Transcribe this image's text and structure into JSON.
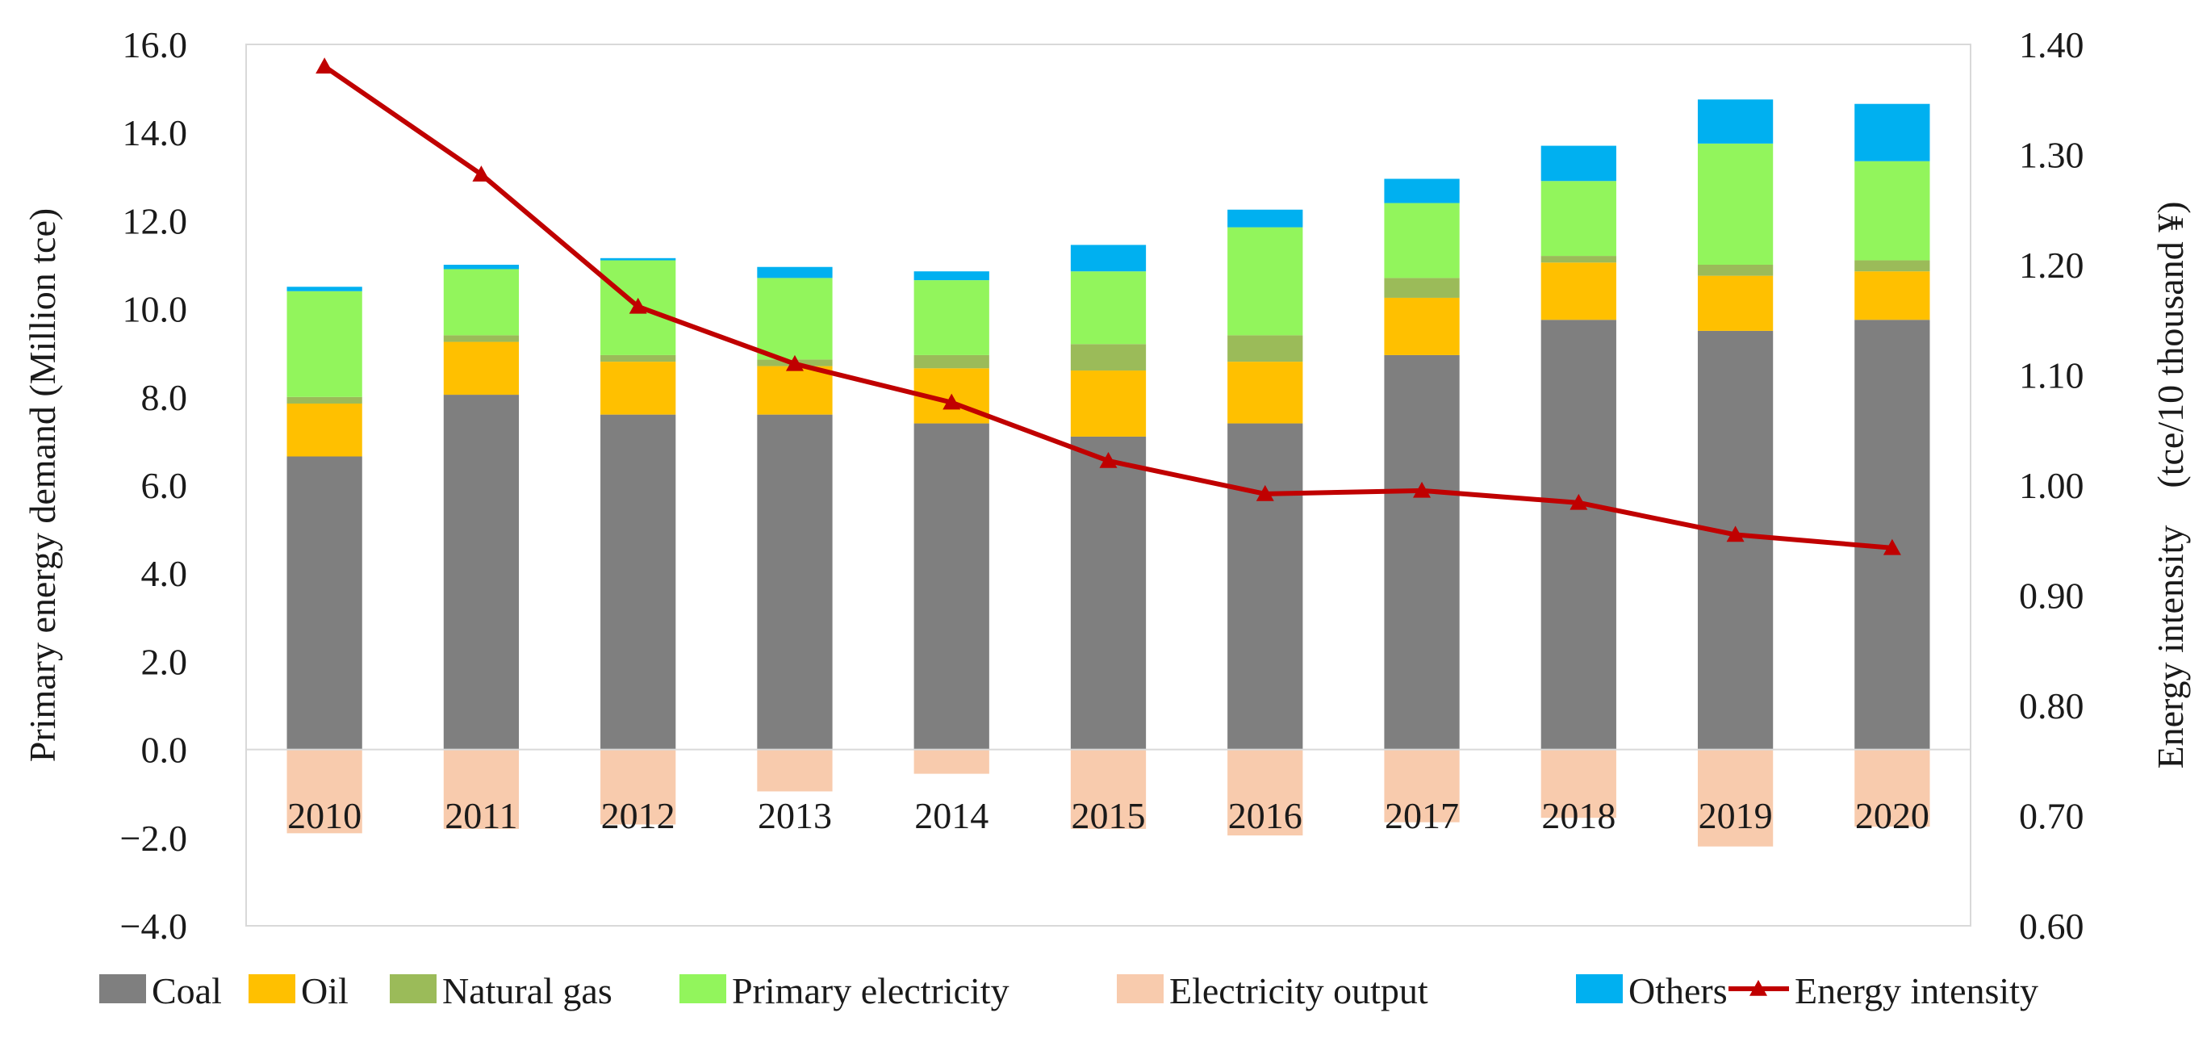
{
  "chart_data": {
    "type": "bar",
    "stacked": true,
    "categories": [
      "2010",
      "2011",
      "2012",
      "2013",
      "2014",
      "2015",
      "2016",
      "2017",
      "2018",
      "2019",
      "2020"
    ],
    "series": [
      {
        "name": "Coal",
        "color": "#7f7f7f",
        "values": [
          6.65,
          8.05,
          7.6,
          7.6,
          7.4,
          7.1,
          7.4,
          8.95,
          9.75,
          9.5,
          9.75
        ]
      },
      {
        "name": "Oil",
        "color": "#ffc000",
        "values": [
          1.2,
          1.2,
          1.2,
          1.1,
          1.25,
          1.5,
          1.4,
          1.3,
          1.3,
          1.25,
          1.1
        ]
      },
      {
        "name": "Natural gas",
        "color": "#9bbb59",
        "values": [
          0.15,
          0.15,
          0.15,
          0.15,
          0.3,
          0.6,
          0.6,
          0.45,
          0.15,
          0.25,
          0.25
        ]
      },
      {
        "name": "Primary electricity",
        "color": "#92f55c",
        "values": [
          2.4,
          1.5,
          2.15,
          1.85,
          1.7,
          1.65,
          2.45,
          1.7,
          1.7,
          2.75,
          2.25
        ]
      },
      {
        "name": "Electricity output",
        "color": "#f8cbad",
        "values": [
          -1.9,
          -1.8,
          -1.7,
          -0.95,
          -0.55,
          -1.8,
          -1.95,
          -1.65,
          -1.55,
          -2.2,
          -1.75
        ]
      },
      {
        "name": "Others",
        "color": "#00b0f0",
        "values": [
          0.1,
          0.1,
          0.05,
          0.25,
          0.2,
          0.6,
          0.4,
          0.55,
          0.8,
          1.0,
          1.3
        ]
      }
    ],
    "line_series": {
      "name": "Energy intensity",
      "color": "#c00000",
      "axis": "right",
      "values": [
        1.38,
        1.282,
        1.162,
        1.11,
        1.075,
        1.022,
        0.992,
        0.995,
        0.984,
        0.955,
        0.943
      ]
    },
    "y_left": {
      "label": "Primary energy demand (Million tce)",
      "lim": [
        -4.0,
        16.0
      ],
      "ticks": [
        "16.0",
        "14.0",
        "12.0",
        "10.0",
        "8.0",
        "6.0",
        "4.0",
        "2.0",
        "0.0",
        "−2.0",
        "−4.0"
      ]
    },
    "y_right": {
      "label": "Energy intensity　(tce/10 thousand ¥)",
      "lim": [
        0.6,
        1.4
      ],
      "ticks": [
        "1.40",
        "1.30",
        "1.20",
        "1.10",
        "1.00",
        "0.90",
        "0.80",
        "0.70",
        "0.60"
      ]
    },
    "legend": {
      "position": "bottom",
      "items": [
        "Coal",
        "Oil",
        "Natural gas",
        "Primary electricity",
        "Electricity output",
        "Others",
        "Energy intensity"
      ]
    },
    "grid": false
  }
}
